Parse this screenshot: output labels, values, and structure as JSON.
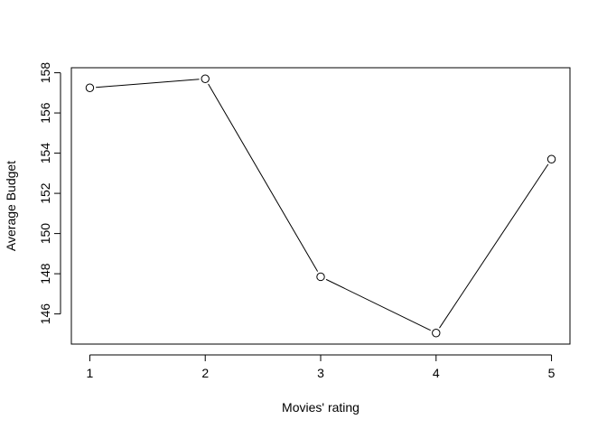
{
  "chart_data": {
    "type": "line",
    "title": "",
    "xlabel": "Movies' rating",
    "ylabel": "Average Budget",
    "x": [
      1,
      2,
      3,
      4,
      5
    ],
    "series": [
      {
        "values": [
          157.25,
          157.7,
          147.85,
          145.05,
          153.7
        ]
      }
    ],
    "xticks": [
      1,
      2,
      3,
      4,
      5
    ],
    "yticks": [
      146,
      148,
      150,
      152,
      154,
      156,
      158
    ],
    "xlim": [
      0.84,
      5.16
    ],
    "ylim": [
      144.5,
      158.25
    ],
    "grid": false,
    "markers": "open-circle",
    "line_color": "#000000"
  }
}
